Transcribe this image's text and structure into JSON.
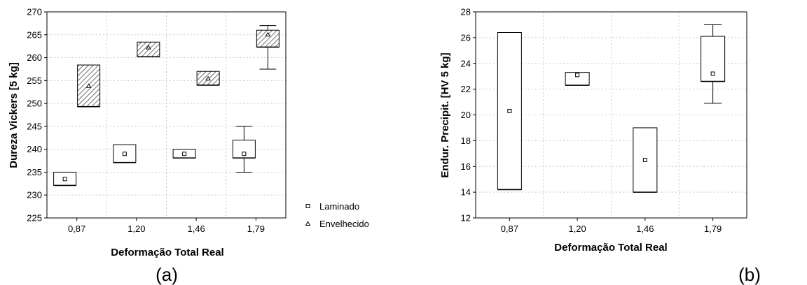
{
  "chart_data": [
    {
      "type": "box",
      "caption": "(a)",
      "xlabel": "Deformação Total Real",
      "ylabel": "Dureza Vickers [5 kg]",
      "categories": [
        "0,87",
        "1,20",
        "1,46",
        "1,79"
      ],
      "ylim": [
        225,
        270
      ],
      "yticks": [
        "225",
        "230",
        "235",
        "240",
        "245",
        "250",
        "255",
        "260",
        "265",
        "270"
      ],
      "grid": true,
      "legend_position": "right, outside plot",
      "series": [
        {
          "name": "Laminado",
          "marker": "square",
          "hatch": false,
          "boxes": [
            {
              "category": "0,87",
              "mean": 233.5,
              "box_low": 232.1,
              "box_high": 235.0,
              "whisker_low": null,
              "whisker_high": null
            },
            {
              "category": "1,20",
              "mean": 239.0,
              "box_low": 237.1,
              "box_high": 241.0,
              "whisker_low": null,
              "whisker_high": null
            },
            {
              "category": "1,46",
              "mean": 239.0,
              "box_low": 238.1,
              "box_high": 240.0,
              "whisker_low": null,
              "whisker_high": null
            },
            {
              "category": "1,79",
              "mean": 239.0,
              "box_low": 238.1,
              "box_high": 242.0,
              "whisker_low": 235.0,
              "whisker_high": 245.0
            }
          ]
        },
        {
          "name": "Envelhecido",
          "marker": "triangle",
          "hatch": true,
          "boxes": [
            {
              "category": "0,87",
              "mean": 253.8,
              "box_low": 249.3,
              "box_high": 258.4,
              "whisker_low": null,
              "whisker_high": null
            },
            {
              "category": "1,20",
              "mean": 262.2,
              "box_low": 260.2,
              "box_high": 263.4,
              "whisker_low": null,
              "whisker_high": null
            },
            {
              "category": "1,46",
              "mean": 255.4,
              "box_low": 254.0,
              "box_high": 257.0,
              "whisker_low": null,
              "whisker_high": null
            },
            {
              "category": "1,79",
              "mean": 265.0,
              "box_low": 262.3,
              "box_high": 266.0,
              "whisker_low": 257.5,
              "whisker_high": 267.0
            }
          ]
        }
      ]
    },
    {
      "type": "box",
      "caption": "(b)",
      "xlabel": "Deformação Total Real",
      "ylabel": "Endur. Precipit. [HV 5 kg]",
      "categories": [
        "0,87",
        "1,20",
        "1,46",
        "1,79"
      ],
      "ylim": [
        12,
        28
      ],
      "yticks": [
        "12",
        "14",
        "16",
        "18",
        "20",
        "22",
        "24",
        "26",
        "28"
      ],
      "grid": true,
      "series": [
        {
          "marker": "square",
          "hatch": false,
          "boxes": [
            {
              "category": "0,87",
              "mean": 20.3,
              "box_low": 14.2,
              "box_high": 26.4,
              "whisker_low": null,
              "whisker_high": null
            },
            {
              "category": "1,20",
              "mean": 23.1,
              "box_low": 22.3,
              "box_high": 23.3,
              "whisker_low": null,
              "whisker_high": null
            },
            {
              "category": "1,46",
              "mean": 16.5,
              "box_low": 14.0,
              "box_high": 19.0,
              "whisker_low": null,
              "whisker_high": null
            },
            {
              "category": "1,79",
              "mean": 23.2,
              "box_low": 22.6,
              "box_high": 26.1,
              "whisker_low": 20.9,
              "whisker_high": 27.0
            }
          ]
        }
      ]
    }
  ]
}
